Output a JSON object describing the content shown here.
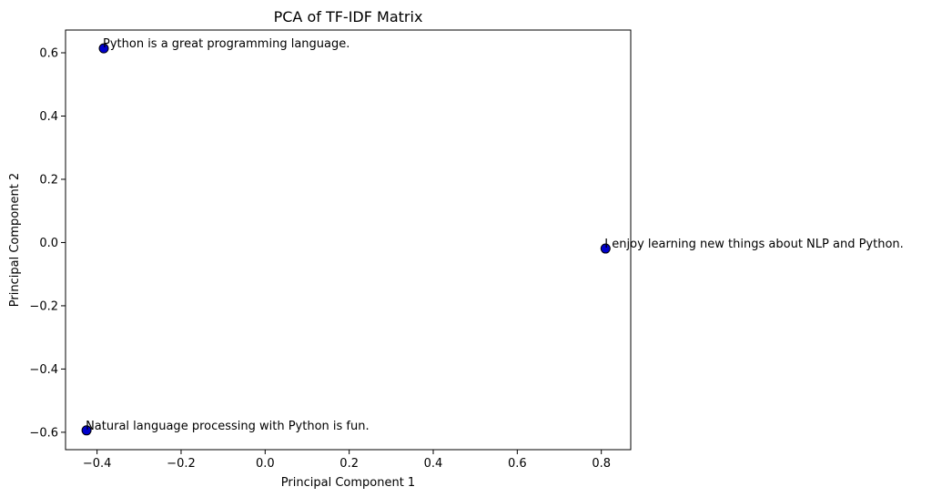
{
  "chart_data": {
    "type": "scatter",
    "title": "PCA of TF-IDF Matrix",
    "xlabel": "Principal Component 1",
    "ylabel": "Principal Component 2",
    "xlim": [
      -0.475,
      0.87
    ],
    "ylim": [
      -0.655,
      0.672
    ],
    "xticks": [
      -0.4,
      -0.2,
      0.0,
      0.2,
      0.4,
      0.6,
      0.8
    ],
    "xtick_labels": [
      "−0.4",
      "−0.2",
      "0.0",
      "0.2",
      "0.4",
      "0.6",
      "0.8"
    ],
    "yticks": [
      -0.6,
      -0.4,
      -0.2,
      0.0,
      0.2,
      0.4,
      0.6
    ],
    "ytick_labels": [
      "−0.6",
      "−0.4",
      "−0.2",
      "0.0",
      "0.2",
      "0.4",
      "0.6"
    ],
    "grid": false,
    "legend": "none",
    "marker_color": "#0000cd",
    "marker_edge_color": "#000000",
    "points": [
      {
        "x": -0.384,
        "y": 0.614,
        "label": "Python is a great programming language."
      },
      {
        "x": 0.81,
        "y": -0.019,
        "label": "I enjoy learning new things about NLP and Python."
      },
      {
        "x": -0.425,
        "y": -0.594,
        "label": "Natural language processing with Python is fun."
      }
    ]
  }
}
